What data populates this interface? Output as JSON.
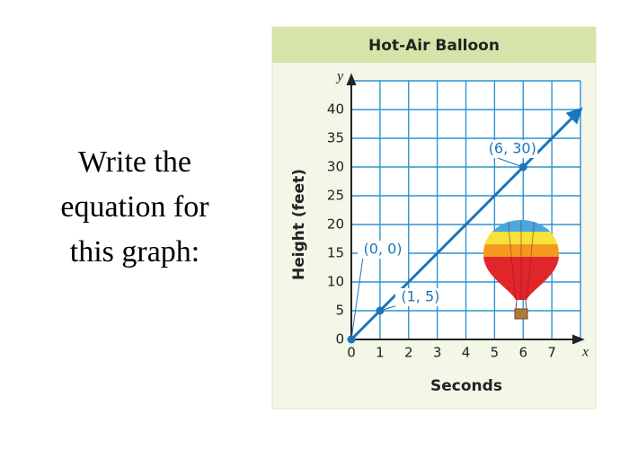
{
  "prompt": [
    "Write the",
    "equation for",
    "this graph:"
  ],
  "chart_data": {
    "type": "line",
    "title": "Hot-Air Balloon",
    "x_label": "Seconds",
    "y_label": "Height (feet)",
    "x_axis_name": "x",
    "y_axis_name": "y",
    "xlim": [
      0,
      8
    ],
    "xticks": [
      0,
      1,
      2,
      3,
      4,
      5,
      6,
      7
    ],
    "ylim": [
      0,
      45
    ],
    "yticks": [
      0,
      5,
      10,
      15,
      20,
      25,
      30,
      35,
      40
    ],
    "grid": true,
    "color": "#1b75bb",
    "series": [
      {
        "x": [
          0,
          8
        ],
        "values": [
          0,
          40
        ],
        "color": "#1b75bb"
      }
    ],
    "points": {
      "x": [
        0,
        1,
        6
      ],
      "values": [
        0,
        5,
        30
      ],
      "labels": [
        "(0, 0)",
        "(1, 5)",
        "(6, 30)"
      ]
    }
  }
}
